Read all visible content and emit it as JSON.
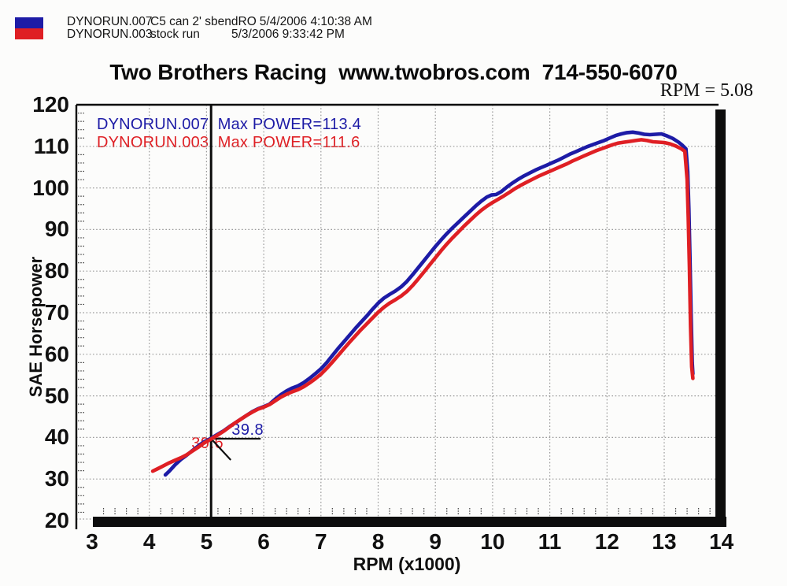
{
  "header": {
    "runs": [
      {
        "file": "DYNORUN.007",
        "desc": "C5 can 2' sbendRO",
        "date": "5/4/2006 4:10:38 AM",
        "color": "#1d1ba6"
      },
      {
        "file": "DYNORUN.003",
        "desc": "stock run",
        "date": "5/3/2006 9:33:42 PM",
        "color": "#df1f24"
      }
    ]
  },
  "title": "Two Brothers Racing  www.twobros.com  714-550-6070",
  "cursor_readout": "RPM = 5.08",
  "chart_data": {
    "type": "line",
    "title": "Two Brothers Racing  www.twobros.com  714-550-6070",
    "xlabel": "RPM (x1000)",
    "ylabel": "SAE Horsepower",
    "xlim": [
      3,
      14
    ],
    "ylim": [
      20,
      120
    ],
    "x_ticks": [
      3,
      4,
      5,
      6,
      7,
      8,
      9,
      10,
      11,
      12,
      13,
      14
    ],
    "y_ticks": [
      20,
      30,
      40,
      50,
      60,
      70,
      80,
      90,
      100,
      110,
      120
    ],
    "minor_x_step": 0.2,
    "minor_y_step": 2,
    "grid": "dotted",
    "legend_position": "top-left-inside",
    "legend": [
      {
        "label": "DYNORUN.007  Max POWER=113.4",
        "color": "#1d1ba6"
      },
      {
        "label": "DYNORUN.003  Max POWER=111.6",
        "color": "#df1f24"
      }
    ],
    "cursor": {
      "rpm": 5.08,
      "labels": [
        {
          "text": "39.8",
          "color": "#1d1ba6"
        },
        {
          "text": "39.6",
          "color": "#df1f24"
        }
      ]
    },
    "series": [
      {
        "name": "DYNORUN.007",
        "color": "#1d1ba6",
        "max_power": 113.4,
        "points": [
          [
            4.28,
            31.0
          ],
          [
            4.35,
            31.9
          ],
          [
            4.45,
            33.4
          ],
          [
            4.55,
            34.7
          ],
          [
            4.65,
            35.7
          ],
          [
            4.75,
            36.8
          ],
          [
            4.85,
            37.9
          ],
          [
            4.95,
            38.9
          ],
          [
            5.08,
            39.8
          ],
          [
            5.2,
            40.8
          ],
          [
            5.3,
            41.6
          ],
          [
            5.4,
            42.6
          ],
          [
            5.5,
            43.5
          ],
          [
            5.6,
            44.4
          ],
          [
            5.7,
            45.3
          ],
          [
            5.8,
            46.2
          ],
          [
            5.9,
            46.9
          ],
          [
            6.0,
            47.4
          ],
          [
            6.1,
            48.0
          ],
          [
            6.2,
            49.2
          ],
          [
            6.3,
            50.3
          ],
          [
            6.4,
            51.2
          ],
          [
            6.5,
            51.9
          ],
          [
            6.6,
            52.4
          ],
          [
            6.7,
            53.2
          ],
          [
            6.8,
            54.2
          ],
          [
            6.9,
            55.3
          ],
          [
            7.0,
            56.5
          ],
          [
            7.1,
            58.0
          ],
          [
            7.2,
            59.7
          ],
          [
            7.3,
            61.4
          ],
          [
            7.4,
            63.0
          ],
          [
            7.5,
            64.6
          ],
          [
            7.6,
            66.2
          ],
          [
            7.7,
            67.7
          ],
          [
            7.8,
            69.2
          ],
          [
            7.9,
            70.8
          ],
          [
            8.0,
            72.3
          ],
          [
            8.1,
            73.5
          ],
          [
            8.2,
            74.4
          ],
          [
            8.3,
            75.2
          ],
          [
            8.4,
            76.2
          ],
          [
            8.5,
            77.5
          ],
          [
            8.6,
            79.1
          ],
          [
            8.7,
            80.8
          ],
          [
            8.8,
            82.5
          ],
          [
            8.9,
            84.2
          ],
          [
            9.0,
            85.9
          ],
          [
            9.1,
            87.5
          ],
          [
            9.2,
            89.0
          ],
          [
            9.3,
            90.4
          ],
          [
            9.4,
            91.7
          ],
          [
            9.5,
            93.0
          ],
          [
            9.6,
            94.3
          ],
          [
            9.7,
            95.6
          ],
          [
            9.8,
            96.8
          ],
          [
            9.9,
            97.8
          ],
          [
            9.98,
            98.3
          ],
          [
            10.06,
            98.4
          ],
          [
            10.15,
            99.1
          ],
          [
            10.25,
            100.2
          ],
          [
            10.35,
            101.2
          ],
          [
            10.45,
            102.1
          ],
          [
            10.55,
            102.9
          ],
          [
            10.65,
            103.6
          ],
          [
            10.75,
            104.3
          ],
          [
            10.85,
            104.9
          ],
          [
            10.95,
            105.5
          ],
          [
            11.05,
            106.1
          ],
          [
            11.15,
            106.7
          ],
          [
            11.25,
            107.4
          ],
          [
            11.35,
            108.1
          ],
          [
            11.45,
            108.7
          ],
          [
            11.55,
            109.3
          ],
          [
            11.65,
            109.9
          ],
          [
            11.75,
            110.4
          ],
          [
            11.85,
            110.9
          ],
          [
            11.95,
            111.4
          ],
          [
            12.05,
            112.0
          ],
          [
            12.15,
            112.6
          ],
          [
            12.25,
            113.0
          ],
          [
            12.35,
            113.3
          ],
          [
            12.45,
            113.4
          ],
          [
            12.55,
            113.2
          ],
          [
            12.65,
            112.9
          ],
          [
            12.75,
            112.8
          ],
          [
            12.85,
            112.9
          ],
          [
            12.95,
            113.0
          ],
          [
            13.05,
            112.5
          ],
          [
            13.15,
            111.9
          ],
          [
            13.25,
            111.0
          ],
          [
            13.32,
            110.2
          ],
          [
            13.38,
            109.4
          ],
          [
            13.41,
            104.0
          ],
          [
            13.43,
            95.0
          ],
          [
            13.45,
            83.0
          ],
          [
            13.47,
            69.0
          ],
          [
            13.49,
            58.0
          ],
          [
            13.5,
            55.3
          ]
        ]
      },
      {
        "name": "DYNORUN.003",
        "color": "#df1f24",
        "max_power": 111.6,
        "points": [
          [
            4.06,
            31.9
          ],
          [
            4.15,
            32.5
          ],
          [
            4.25,
            33.2
          ],
          [
            4.35,
            33.9
          ],
          [
            4.45,
            34.5
          ],
          [
            4.55,
            35.1
          ],
          [
            4.65,
            35.8
          ],
          [
            4.75,
            36.7
          ],
          [
            4.85,
            37.6
          ],
          [
            4.95,
            38.6
          ],
          [
            5.08,
            39.6
          ],
          [
            5.2,
            40.6
          ],
          [
            5.3,
            41.5
          ],
          [
            5.4,
            42.5
          ],
          [
            5.5,
            43.5
          ],
          [
            5.6,
            44.4
          ],
          [
            5.7,
            45.3
          ],
          [
            5.8,
            46.1
          ],
          [
            5.9,
            46.8
          ],
          [
            6.0,
            47.3
          ],
          [
            6.1,
            47.9
          ],
          [
            6.2,
            48.8
          ],
          [
            6.3,
            49.7
          ],
          [
            6.4,
            50.4
          ],
          [
            6.5,
            51.0
          ],
          [
            6.6,
            51.5
          ],
          [
            6.7,
            52.2
          ],
          [
            6.8,
            53.1
          ],
          [
            6.9,
            54.1
          ],
          [
            7.0,
            55.2
          ],
          [
            7.1,
            56.6
          ],
          [
            7.2,
            58.1
          ],
          [
            7.3,
            59.7
          ],
          [
            7.4,
            61.3
          ],
          [
            7.5,
            62.9
          ],
          [
            7.6,
            64.4
          ],
          [
            7.7,
            65.9
          ],
          [
            7.8,
            67.3
          ],
          [
            7.9,
            68.7
          ],
          [
            8.0,
            70.1
          ],
          [
            8.1,
            71.3
          ],
          [
            8.2,
            72.3
          ],
          [
            8.3,
            73.1
          ],
          [
            8.4,
            74.0
          ],
          [
            8.5,
            75.1
          ],
          [
            8.6,
            76.5
          ],
          [
            8.7,
            78.1
          ],
          [
            8.8,
            79.8
          ],
          [
            8.9,
            81.5
          ],
          [
            9.0,
            83.2
          ],
          [
            9.1,
            84.9
          ],
          [
            9.2,
            86.5
          ],
          [
            9.3,
            88.0
          ],
          [
            9.4,
            89.4
          ],
          [
            9.5,
            90.8
          ],
          [
            9.6,
            92.1
          ],
          [
            9.7,
            93.4
          ],
          [
            9.8,
            94.6
          ],
          [
            9.9,
            95.6
          ],
          [
            10.0,
            96.5
          ],
          [
            10.1,
            97.3
          ],
          [
            10.2,
            98.1
          ],
          [
            10.3,
            99.0
          ],
          [
            10.4,
            99.9
          ],
          [
            10.5,
            100.7
          ],
          [
            10.6,
            101.4
          ],
          [
            10.7,
            102.1
          ],
          [
            10.8,
            102.8
          ],
          [
            10.9,
            103.4
          ],
          [
            11.0,
            104.0
          ],
          [
            11.1,
            104.6
          ],
          [
            11.2,
            105.2
          ],
          [
            11.3,
            105.8
          ],
          [
            11.4,
            106.5
          ],
          [
            11.5,
            107.1
          ],
          [
            11.6,
            107.7
          ],
          [
            11.7,
            108.3
          ],
          [
            11.8,
            108.9
          ],
          [
            11.9,
            109.4
          ],
          [
            12.0,
            109.9
          ],
          [
            12.1,
            110.4
          ],
          [
            12.2,
            110.8
          ],
          [
            12.3,
            111.0
          ],
          [
            12.4,
            111.2
          ],
          [
            12.5,
            111.4
          ],
          [
            12.6,
            111.6
          ],
          [
            12.7,
            111.4
          ],
          [
            12.8,
            111.1
          ],
          [
            12.9,
            111.0
          ],
          [
            13.0,
            110.9
          ],
          [
            13.1,
            110.6
          ],
          [
            13.2,
            110.1
          ],
          [
            13.3,
            109.4
          ],
          [
            13.36,
            108.8
          ],
          [
            13.4,
            102.0
          ],
          [
            13.42,
            93.0
          ],
          [
            13.44,
            81.0
          ],
          [
            13.46,
            67.0
          ],
          [
            13.48,
            57.0
          ],
          [
            13.5,
            54.2
          ]
        ]
      }
    ]
  }
}
